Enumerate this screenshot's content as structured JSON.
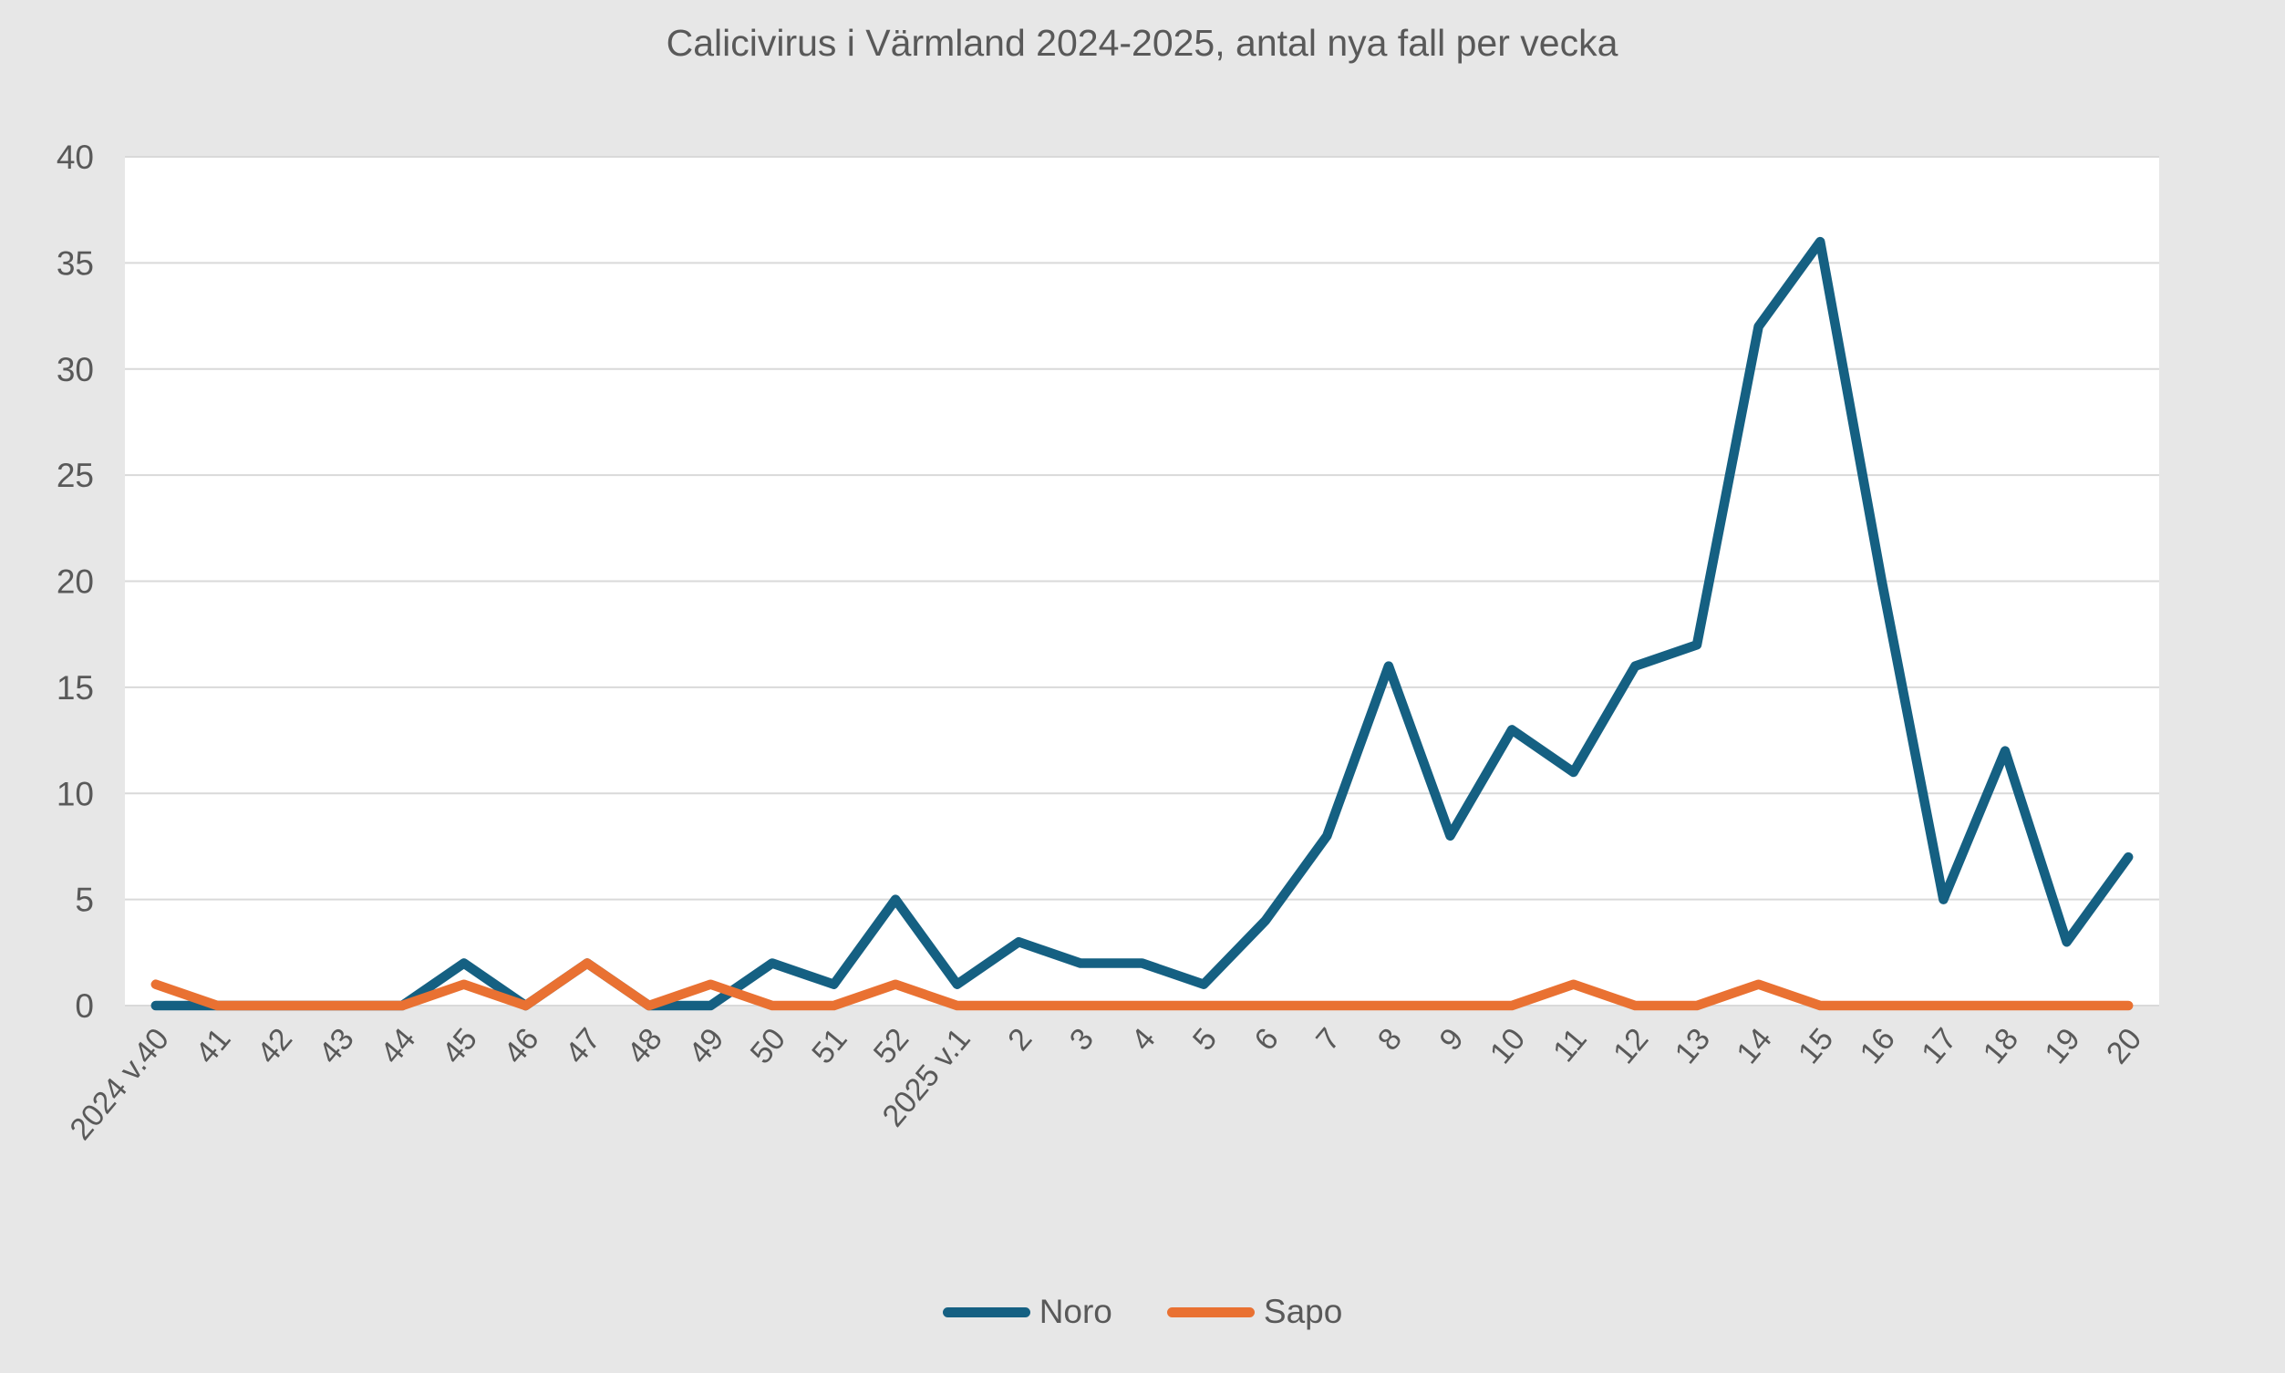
{
  "chart_data": {
    "type": "line",
    "title": "Calicivirus i Värmland 2024-2025, antal nya fall per vecka",
    "xlabel": "",
    "ylabel": "",
    "ylim": [
      0,
      40
    ],
    "ytick_step": 5,
    "grid": true,
    "legend_position": "bottom",
    "categories": [
      "2024 v.40",
      "41",
      "42",
      "43",
      "44",
      "45",
      "46",
      "47",
      "48",
      "49",
      "50",
      "51",
      "52",
      "2025 v.1",
      "2",
      "3",
      "4",
      "5",
      "6",
      "7",
      "8",
      "9",
      "10",
      "11",
      "12",
      "13",
      "14",
      "15",
      "16",
      "17",
      "18",
      "19",
      "20"
    ],
    "series": [
      {
        "name": "Noro",
        "color": "#156082",
        "values": [
          0,
          0,
          0,
          0,
          0,
          2,
          0,
          2,
          0,
          0,
          2,
          1,
          5,
          1,
          3,
          2,
          2,
          1,
          4,
          8,
          16,
          8,
          13,
          11,
          16,
          17,
          32,
          36,
          20,
          5,
          12,
          3,
          7
        ]
      },
      {
        "name": "Sapo",
        "color": "#E97132",
        "values": [
          1,
          0,
          0,
          0,
          0,
          1,
          0,
          2,
          0,
          1,
          0,
          0,
          1,
          0,
          0,
          0,
          0,
          0,
          0,
          0,
          0,
          0,
          0,
          1,
          0,
          0,
          1,
          0,
          0,
          0,
          0,
          0,
          0
        ]
      }
    ],
    "y_tick_labels": [
      "0",
      "5",
      "10",
      "15",
      "20",
      "25",
      "30",
      "35",
      "40"
    ]
  },
  "style": {
    "plot_background": "#FFFFFF",
    "page_background": "#E7E7E7",
    "gridline_color": "#D9D9D9",
    "text_color": "#595959"
  }
}
